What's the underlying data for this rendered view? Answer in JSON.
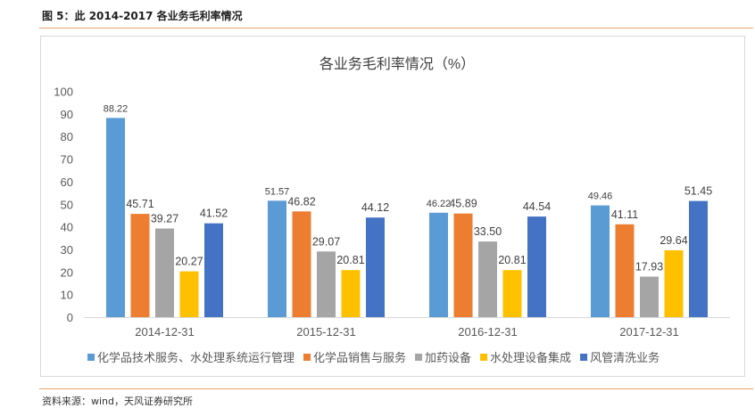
{
  "figure": {
    "caption": "图 5：此 2014-2017 各业务毛利率情况",
    "source": "资料来源：wind，天风证券研究所"
  },
  "chart_data": {
    "type": "bar",
    "title": "各业务毛利率情况（%）",
    "xlabel": "",
    "ylabel": "",
    "ylim": [
      0,
      100
    ],
    "yticks": [
      0,
      10,
      20,
      30,
      40,
      50,
      60,
      70,
      80,
      90,
      100
    ],
    "categories": [
      "2014-12-31",
      "2015-12-31",
      "2016-12-31",
      "2017-12-31"
    ],
    "series": [
      {
        "name": "化学品技术服务、水处理系统运行管理",
        "color": "#5b9bd5",
        "values": [
          88.22,
          51.57,
          46.22,
          49.46
        ],
        "labels": [
          "88.22",
          "51.57",
          "46.22",
          "49.46"
        ]
      },
      {
        "name": "化学品销售与服务",
        "color": "#ed7d31",
        "values": [
          45.71,
          46.82,
          45.89,
          41.11
        ],
        "labels": [
          "45.71",
          "46.82",
          "45.89",
          "41.11"
        ]
      },
      {
        "name": "加药设备",
        "color": "#a5a5a5",
        "values": [
          39.27,
          29.07,
          33.5,
          17.93
        ],
        "labels": [
          "39.27",
          "29.07",
          "33.50",
          "17.93"
        ]
      },
      {
        "name": "水处理设备集成",
        "color": "#ffc000",
        "values": [
          20.27,
          20.81,
          20.81,
          29.64
        ],
        "labels": [
          "20.27",
          "20.81",
          "20.81",
          "29.64"
        ]
      },
      {
        "name": "风管清洗业务",
        "color": "#4472c4",
        "values": [
          41.52,
          44.12,
          44.54,
          51.45
        ],
        "labels": [
          "41.52",
          "44.12",
          "44.54",
          "51.45"
        ]
      }
    ],
    "grid": false,
    "legend_position": "bottom"
  }
}
